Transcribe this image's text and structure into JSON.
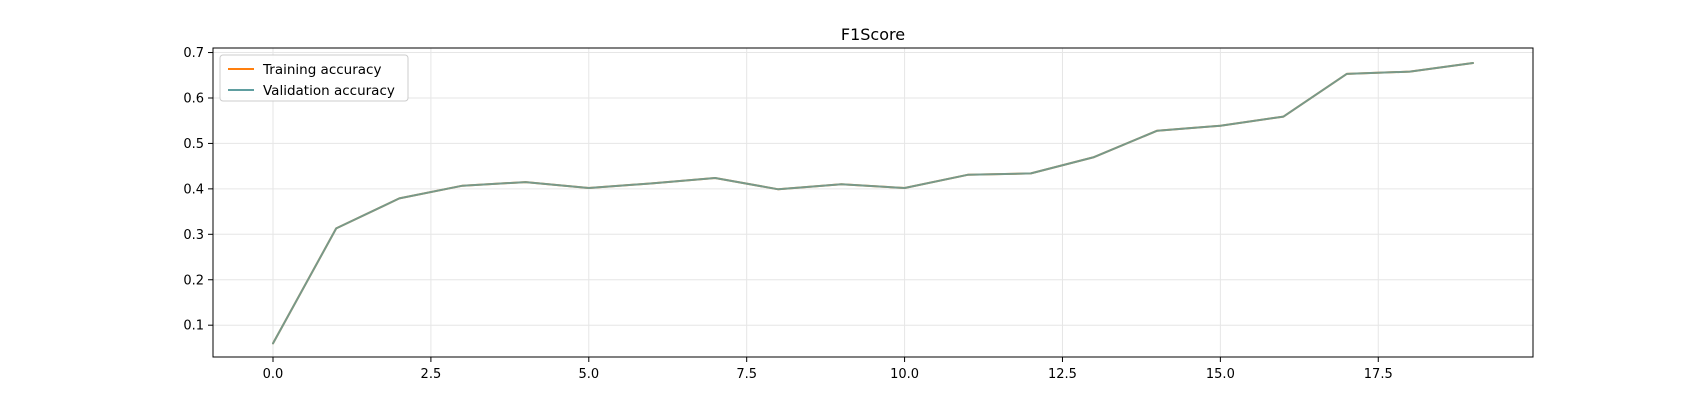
{
  "chart_data": {
    "type": "line",
    "title": "F1Score",
    "xlabel": "",
    "ylabel": "",
    "xlim": [
      -0.95,
      19.95
    ],
    "ylim": [
      0.03,
      0.71
    ],
    "xticks": [
      0.0,
      2.5,
      5.0,
      7.5,
      10.0,
      12.5,
      15.0,
      17.5
    ],
    "xtick_labels": [
      "0.0",
      "2.5",
      "5.0",
      "7.5",
      "10.0",
      "12.5",
      "15.0",
      "17.5"
    ],
    "yticks": [
      0.1,
      0.2,
      0.3,
      0.4,
      0.5,
      0.6,
      0.7
    ],
    "ytick_labels": [
      "0.1",
      "0.2",
      "0.3",
      "0.4",
      "0.5",
      "0.6",
      "0.7"
    ],
    "grid": true,
    "legend_position": "top-left",
    "x": [
      0,
      1,
      2,
      3,
      4,
      5,
      6,
      7,
      8,
      9,
      10,
      11,
      12,
      13,
      14,
      15,
      16,
      17,
      18,
      19
    ],
    "series": [
      {
        "name": "Training accuracy",
        "color": "#ff7f0e",
        "values": [
          0.06,
          0.313,
          0.379,
          0.407,
          0.415,
          0.402,
          0.412,
          0.424,
          0.399,
          0.41,
          0.402,
          0.431,
          0.434,
          0.47,
          0.528,
          0.539,
          0.559,
          0.653,
          0.658,
          0.677
        ]
      },
      {
        "name": "Validation accuracy",
        "color": "#5f9ea0",
        "values": [
          0.06,
          0.313,
          0.379,
          0.407,
          0.415,
          0.402,
          0.412,
          0.424,
          0.399,
          0.41,
          0.402,
          0.431,
          0.434,
          0.47,
          0.528,
          0.539,
          0.559,
          0.653,
          0.658,
          0.677
        ]
      }
    ]
  }
}
